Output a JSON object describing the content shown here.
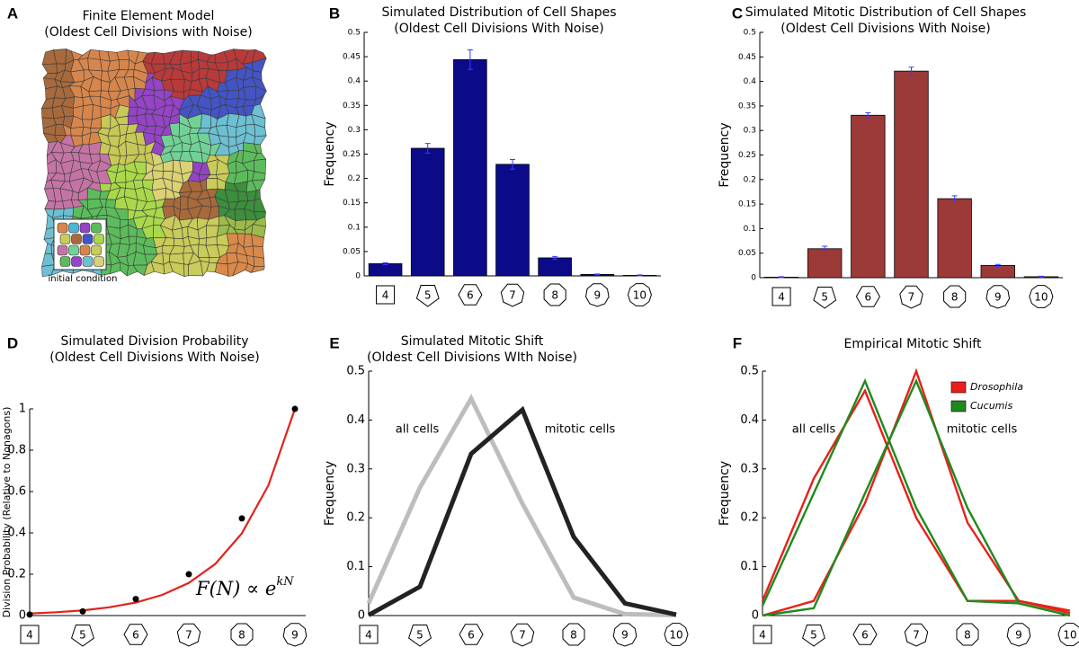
{
  "chart_data": [
    {
      "type": "image",
      "panel": "A",
      "title": "Finite Element Model",
      "subtitle": "(Oldest Cell Divisions with Noise)",
      "annotation": "initial condition"
    },
    {
      "type": "bar",
      "panel": "B",
      "title": "Simulated Distribution of Cell Shapes",
      "subtitle": "(Oldest Cell Divisions With Noise)",
      "ylabel": "Frequency",
      "categories": [
        "4",
        "5",
        "6",
        "7",
        "8",
        "9",
        "10"
      ],
      "values": [
        0.025,
        0.262,
        0.444,
        0.229,
        0.037,
        0.003,
        0.001
      ],
      "errors": [
        0.002,
        0.01,
        0.02,
        0.01,
        0.003,
        0.001,
        0.001
      ],
      "color": "#0b0b8a",
      "error_color": "#3a3aff",
      "ylim": [
        0,
        0.5
      ],
      "yticks": [
        0,
        0.05,
        0.1,
        0.15,
        0.2,
        0.25,
        0.3,
        0.35,
        0.4,
        0.45,
        0.5
      ]
    },
    {
      "type": "bar",
      "panel": "C",
      "title": "Simulated Mitotic Distribution of Cell Shapes",
      "subtitle": "(Oldest Cell Divisions With Noise)",
      "ylabel": "Frequency",
      "categories": [
        "4",
        "5",
        "6",
        "7",
        "8",
        "9",
        "10"
      ],
      "values": [
        0.001,
        0.059,
        0.331,
        0.421,
        0.161,
        0.025,
        0.002
      ],
      "errors": [
        0.001,
        0.005,
        0.005,
        0.008,
        0.006,
        0.002,
        0.001
      ],
      "color": "#9c3a38",
      "error_color": "#3a3aff",
      "ylim": [
        0,
        0.5
      ],
      "yticks": [
        0,
        0.05,
        0.1,
        0.15,
        0.2,
        0.25,
        0.3,
        0.35,
        0.4,
        0.45,
        0.5
      ]
    },
    {
      "type": "scatter",
      "panel": "D",
      "title": "Simulated Division Probability",
      "subtitle": "(Oldest Cell Divisions With Noise)",
      "ylabel": "Division Probability (Relative to Nonagons)",
      "x": [
        4,
        5,
        6,
        7,
        8,
        9
      ],
      "values": [
        0.005,
        0.02,
        0.08,
        0.2,
        0.47,
        1.0
      ],
      "color": "#000000",
      "fit": {
        "x": [
          4,
          4.5,
          5,
          5.5,
          6,
          6.5,
          7,
          7.5,
          8,
          8.5,
          9
        ],
        "values": [
          0.01,
          0.016,
          0.025,
          0.04,
          0.063,
          0.1,
          0.158,
          0.25,
          0.398,
          0.63,
          1.0
        ],
        "color": "#e3221b"
      },
      "annotation": "F(N) ∝ e",
      "annotation_exponent": "kN",
      "xlim": [
        4,
        9
      ],
      "xticks": [
        4,
        5,
        6,
        7,
        8,
        9
      ],
      "ylim": [
        0,
        1
      ],
      "yticks": [
        0,
        0.2,
        0.4,
        0.6,
        0.8,
        1
      ]
    },
    {
      "type": "line",
      "panel": "E",
      "title": "Simulated Mitotic Shift",
      "subtitle": "(Oldest Cell Divisions WIth Noise)",
      "ylabel": "Frequency",
      "categories": [
        "4",
        "5",
        "6",
        "7",
        "8",
        "9",
        "10"
      ],
      "series": [
        {
          "name": "all cells",
          "color": "#bdbdbd",
          "values": [
            0.025,
            0.262,
            0.444,
            0.229,
            0.037,
            0.003,
            0.001
          ]
        },
        {
          "name": "mitotic cells",
          "color": "#222222",
          "values": [
            0.001,
            0.059,
            0.331,
            0.421,
            0.161,
            0.025,
            0.002
          ]
        }
      ],
      "ylim": [
        0,
        0.5
      ],
      "yticks": [
        0,
        0.1,
        0.2,
        0.3,
        0.4,
        0.5
      ]
    },
    {
      "type": "line",
      "panel": "F",
      "title": "Empirical Mitotic Shift",
      "ylabel": "Frequency",
      "categories": [
        "4",
        "5",
        "6",
        "7",
        "8",
        "9",
        "10"
      ],
      "annotations": [
        "all cells",
        "mitotic cells"
      ],
      "series": [
        {
          "name": "Drosophila",
          "color": "#e8201a",
          "values": [
            0.03,
            0.28,
            0.46,
            0.2,
            0.03,
            0.03,
            0.01
          ],
          "mitotic_values": [
            0,
            0.03,
            0.23,
            0.5,
            0.19,
            0.03,
            0.005
          ]
        },
        {
          "name": "Cucumis",
          "color": "#1e8a1e",
          "values": [
            0.02,
            0.25,
            0.48,
            0.22,
            0.03,
            0.025,
            0.0
          ],
          "mitotic_values": [
            0,
            0.015,
            0.25,
            0.48,
            0.22,
            0.025,
            0.0
          ]
        }
      ],
      "legend": "upper right",
      "ylim": [
        0,
        0.5
      ],
      "yticks": [
        0,
        0.1,
        0.2,
        0.3,
        0.4,
        0.5
      ]
    }
  ]
}
